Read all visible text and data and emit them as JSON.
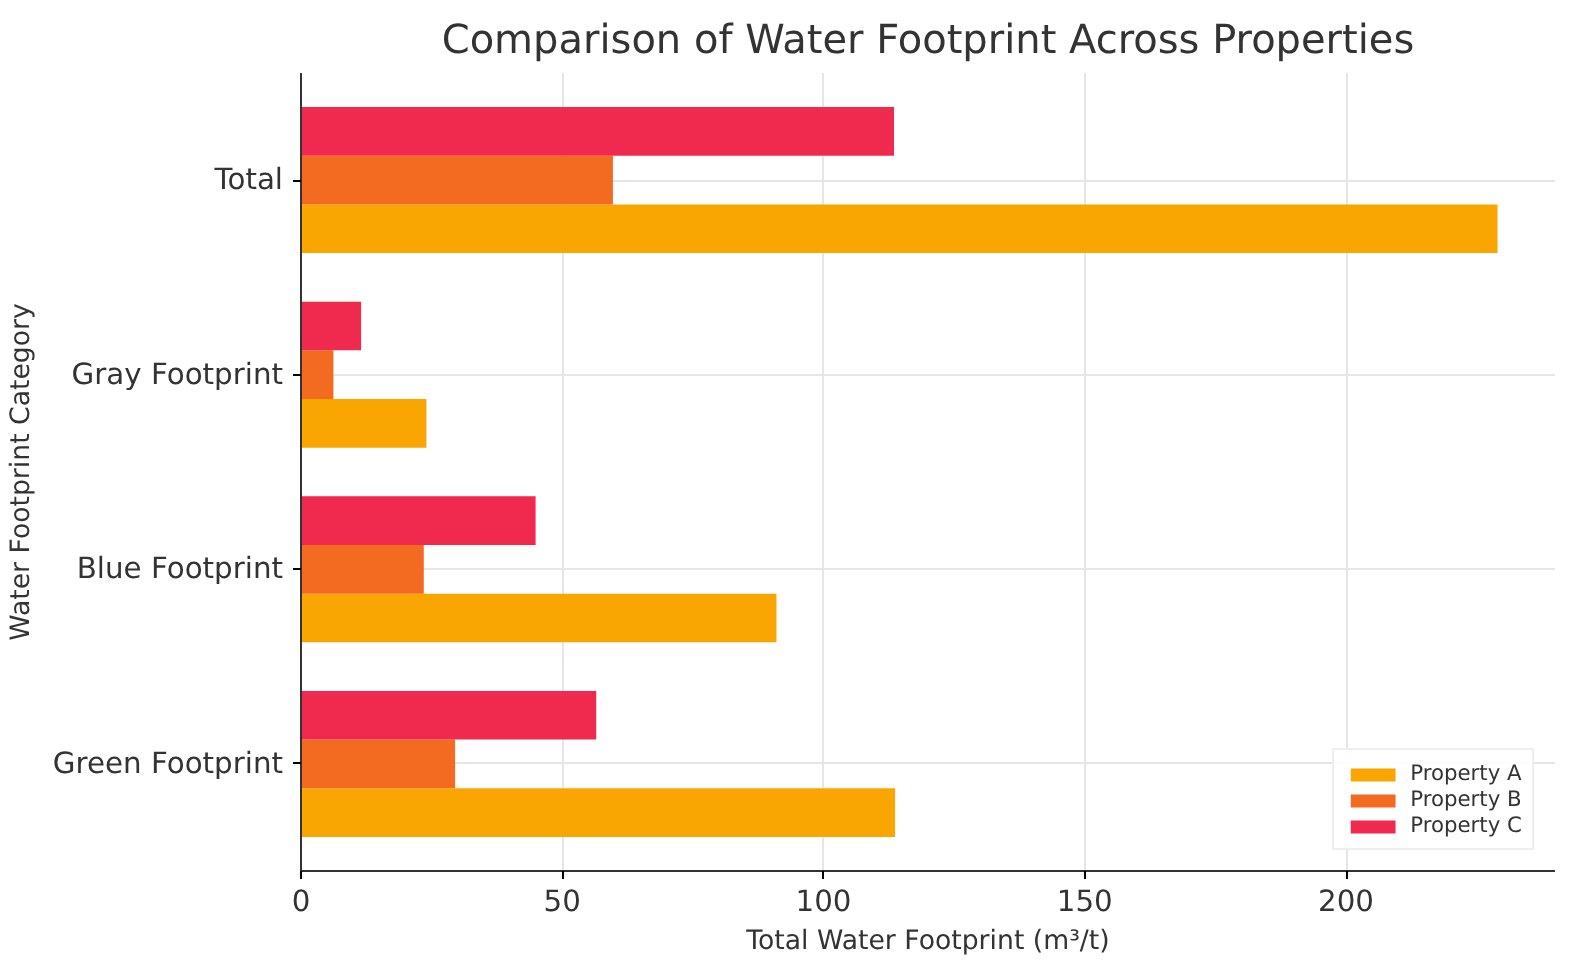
{
  "chart_data": {
    "type": "bar",
    "orientation": "horizontal",
    "title": "Comparison of Water Footprint Across Properties",
    "xlabel": "Total Water Footprint (m³/t)",
    "ylabel": "Water Footprint Category",
    "categories": [
      "Total",
      "Gray Footprint",
      "Blue Footprint",
      "Green Footprint"
    ],
    "series": [
      {
        "name": "Property A",
        "color": "#f9a602",
        "values": [
          229,
          24,
          91,
          113.7
        ]
      },
      {
        "name": "Property B",
        "color": "#f26b21",
        "values": [
          59.7,
          6.2,
          23.5,
          29.5
        ]
      },
      {
        "name": "Property C",
        "color": "#f0294f",
        "values": [
          113.5,
          11.5,
          44.9,
          56.5
        ]
      }
    ],
    "xlim": [
      0,
      240
    ],
    "xticks": [
      0,
      50,
      100,
      150,
      200
    ],
    "grid": true,
    "legend": "bottom right"
  }
}
